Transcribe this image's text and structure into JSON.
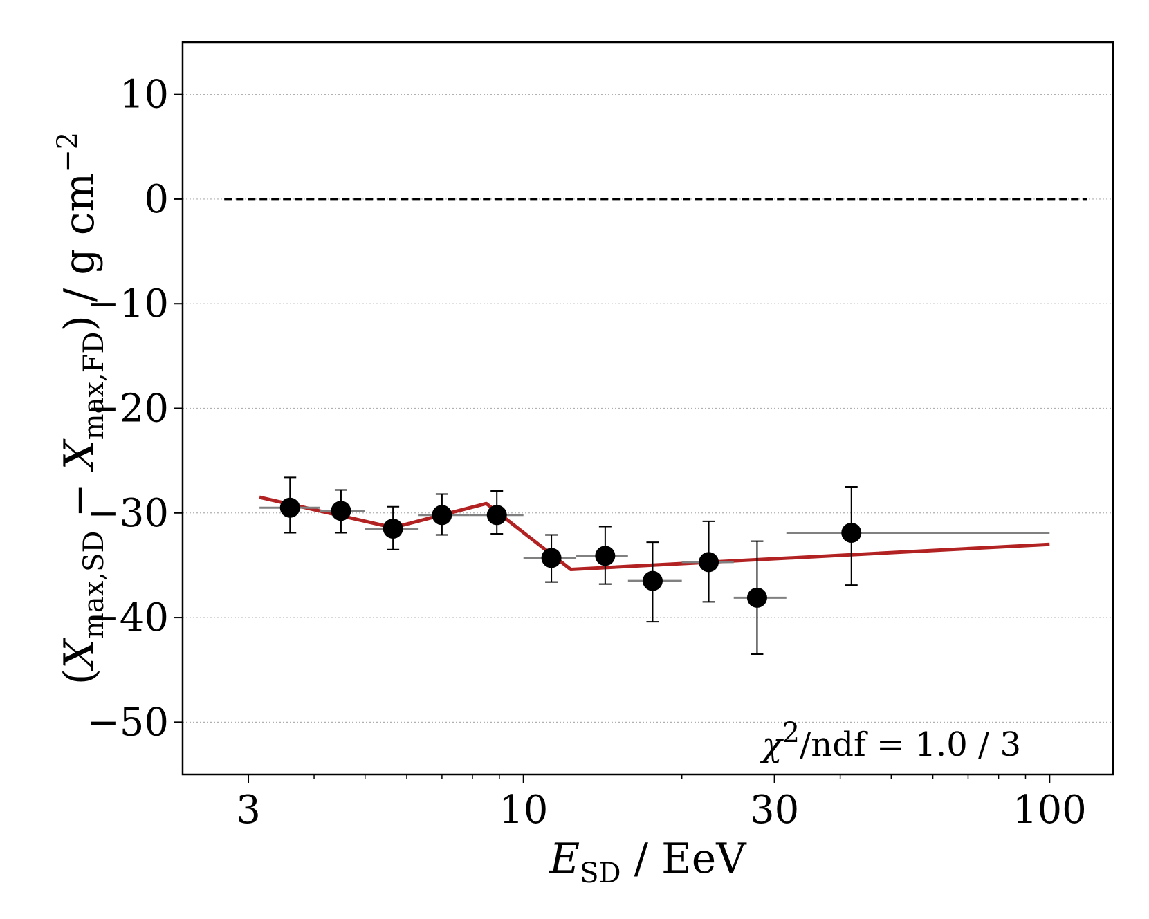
{
  "chart_data": {
    "type": "scatter",
    "xscale": "log",
    "xlim": [
      2.25,
      132
    ],
    "ylim": [
      -55,
      15
    ],
    "xlabel": {
      "main": "E",
      "sub": "SD",
      "rest": " / EeV"
    },
    "ylabel": {
      "open": "(",
      "x1": "X",
      "s1": "max,SD",
      "minus": " − ",
      "x2": "X",
      "s2": "max,FD",
      "close": ") / g cm",
      "sup": "−2"
    },
    "x_ticks": [
      3,
      10,
      30,
      100
    ],
    "x_tick_labels": [
      "3",
      "10",
      "30",
      "100"
    ],
    "y_ticks": [
      10,
      0,
      -10,
      -20,
      -30,
      -40,
      -50
    ],
    "y_tick_labels": [
      "10",
      "0",
      "−10",
      "−20",
      "−30",
      "−40",
      "−50"
    ],
    "grid": "horizontal-dotted",
    "reference_line": {
      "y": 0,
      "x_range": [
        2.7,
        118
      ],
      "style": "dashed",
      "color": "#000000"
    },
    "annotation": {
      "prefix": "χ",
      "sup": "2",
      "rest": "/ndf  =  1.0 / 3"
    },
    "series": [
      {
        "name": "data",
        "color": "#000000",
        "bin_color": "#808080",
        "points": [
          {
            "x": 3.6,
            "y": -29.5,
            "ylo": -31.9,
            "yhi": -26.6,
            "xlo": 3.15,
            "xhi": 4.1
          },
          {
            "x": 4.5,
            "y": -29.8,
            "ylo": -31.9,
            "yhi": -27.8,
            "xlo": 4.1,
            "xhi": 5.0
          },
          {
            "x": 5.65,
            "y": -31.5,
            "ylo": -33.5,
            "yhi": -29.4,
            "xlo": 5.0,
            "xhi": 6.3
          },
          {
            "x": 7.0,
            "y": -30.2,
            "ylo": -32.1,
            "yhi": -28.2,
            "xlo": 6.3,
            "xhi": 7.9
          },
          {
            "x": 8.9,
            "y": -30.2,
            "ylo": -32.0,
            "yhi": -27.9,
            "xlo": 7.9,
            "xhi": 10.0
          },
          {
            "x": 11.3,
            "y": -34.3,
            "ylo": -36.6,
            "yhi": -32.1,
            "xlo": 10.0,
            "xhi": 12.6
          },
          {
            "x": 14.3,
            "y": -34.1,
            "ylo": -36.8,
            "yhi": -31.3,
            "xlo": 12.6,
            "xhi": 15.8
          },
          {
            "x": 17.6,
            "y": -36.5,
            "ylo": -40.4,
            "yhi": -32.8,
            "xlo": 15.8,
            "xhi": 20.0
          },
          {
            "x": 22.5,
            "y": -34.7,
            "ylo": -38.5,
            "yhi": -30.8,
            "xlo": 20.0,
            "xhi": 25.1
          },
          {
            "x": 27.8,
            "y": -38.1,
            "ylo": -43.5,
            "yhi": -32.7,
            "xlo": 25.1,
            "xhi": 31.6
          },
          {
            "x": 42.0,
            "y": -31.9,
            "ylo": -36.9,
            "yhi": -27.5,
            "xlo": 31.6,
            "xhi": 100.0
          }
        ]
      },
      {
        "name": "fit",
        "type": "line",
        "color": "#b22222",
        "x": [
          3.15,
          5.65,
          8.5,
          12.3,
          100
        ],
        "y": [
          -28.5,
          -31.4,
          -29.1,
          -35.4,
          -33.0
        ]
      }
    ]
  }
}
